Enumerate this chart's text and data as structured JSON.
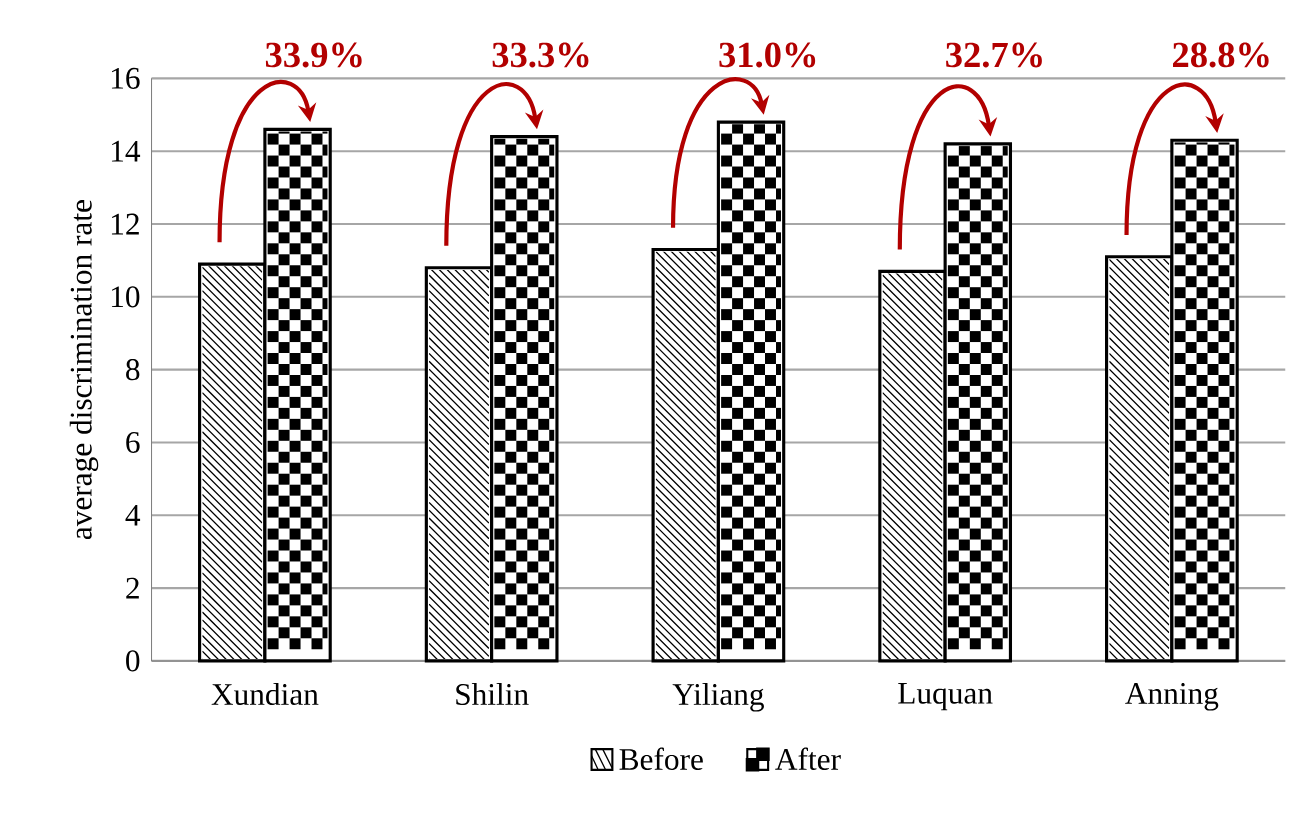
{
  "chart_data": {
    "type": "bar",
    "ylabel": "average discrimination rate",
    "categories": [
      "Xundian",
      "Shilin",
      "Yiliang",
      "Luquan",
      "Anning"
    ],
    "series": [
      {
        "name": "Before",
        "color": "#000000",
        "values": [
          10.9,
          10.8,
          11.3,
          10.7,
          11.1
        ]
      },
      {
        "name": "After",
        "color": "#000000",
        "values": [
          14.6,
          14.4,
          14.8,
          14.2,
          14.3
        ]
      }
    ],
    "annotations": [
      "33.9%",
      "33.3%",
      "31.0%",
      "32.7%",
      "28.8%"
    ],
    "ylim": [
      0,
      16
    ],
    "yticks": [
      0,
      2,
      4,
      6,
      8,
      10,
      12,
      14,
      16
    ],
    "grid": "y",
    "legend": "bottom"
  }
}
